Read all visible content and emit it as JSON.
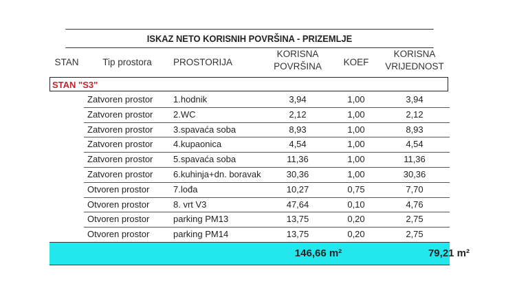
{
  "title": "ISKAZ NETO KORISNIH POVRŠINA - PRIZEMLJE",
  "headers": {
    "stan": "STAN",
    "tip": "Tip prostora",
    "prostorija": "PROSTORIJA",
    "povrsina_1": "KORISNA",
    "povrsina_2": "POVRŠINA",
    "koef": "KOEF",
    "vrijednost_1": "KORISNA",
    "vrijednost_2": "VRIJEDNOST"
  },
  "group": "STAN \"S3\"",
  "rows": [
    {
      "tip": "Zatvoren prostor",
      "prostorija": "1.hodnik",
      "povrsina": "3,94",
      "koef": "1,00",
      "vrijednost": "3,94"
    },
    {
      "tip": "Zatvoren prostor",
      "prostorija": "2.WC",
      "povrsina": "2,12",
      "koef": "1,00",
      "vrijednost": "2,12"
    },
    {
      "tip": "Zatvoren prostor",
      "prostorija": "3.spavaća soba",
      "povrsina": "8,93",
      "koef": "1,00",
      "vrijednost": "8,93"
    },
    {
      "tip": "Zatvoren prostor",
      "prostorija": "4.kupaonica",
      "povrsina": "4,54",
      "koef": "1,00",
      "vrijednost": "4,54"
    },
    {
      "tip": "Zatvoren prostor",
      "prostorija": "5.spavaća soba",
      "povrsina": "11,36",
      "koef": "1,00",
      "vrijednost": "11,36"
    },
    {
      "tip": "Zatvoren prostor",
      "prostorija": "6.kuhinja+dn. boravak",
      "povrsina": "30,36",
      "koef": "1,00",
      "vrijednost": "30,36"
    },
    {
      "tip": "Otvoren prostor",
      "prostorija": "7.lođa",
      "povrsina": "10,27",
      "koef": "0,75",
      "vrijednost": "7,70"
    },
    {
      "tip": "Otvoren prostor",
      "prostorija": "8. vrt V3",
      "povrsina": "47,64",
      "koef": "0,10",
      "vrijednost": "4,76"
    },
    {
      "tip": "Otvoren prostor",
      "prostorija": "parking PM13",
      "povrsina": "13,75",
      "koef": "0,20",
      "vrijednost": "2,75"
    },
    {
      "tip": "Otvoren prostor",
      "prostorija": "parking PM14",
      "povrsina": "13,75",
      "koef": "0,20",
      "vrijednost": "2,75"
    }
  ],
  "totals": {
    "povrsina": "146,66 m²",
    "vrijednost": "79,21 m²"
  },
  "colors": {
    "total_bg": "#22e8ee",
    "group_text": "#c0242a"
  }
}
